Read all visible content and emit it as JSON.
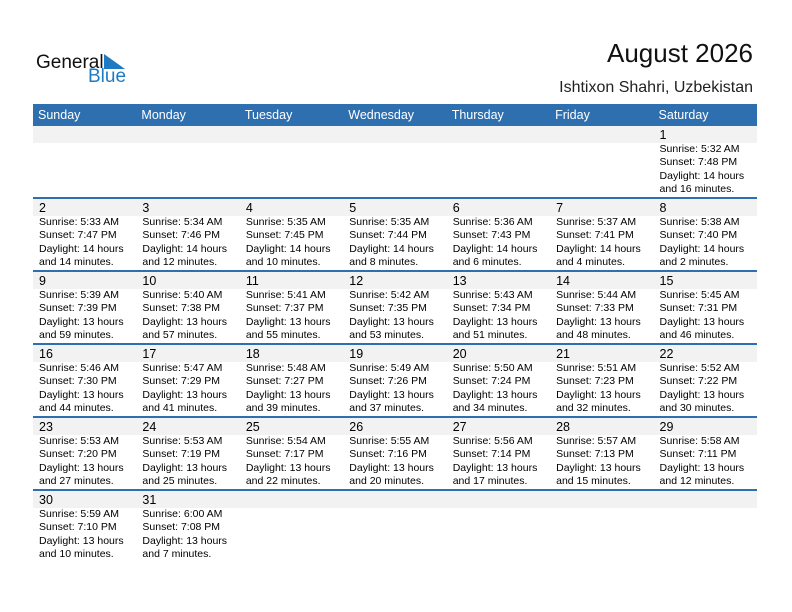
{
  "logo": {
    "text1": "General",
    "text2": "Blue",
    "color": "#1f7ac4"
  },
  "title": "August 2026",
  "location": "Ishtixon Shahri, Uzbekistan",
  "header_color": "#2e6fb0",
  "days": [
    "Sunday",
    "Monday",
    "Tuesday",
    "Wednesday",
    "Thursday",
    "Friday",
    "Saturday"
  ],
  "weeks": [
    [
      null,
      null,
      null,
      null,
      null,
      null,
      {
        "day": "1",
        "sunrise": "Sunrise: 5:32 AM",
        "sunset": "Sunset: 7:48 PM",
        "daylight": "Daylight: 14 hours",
        "minutes": "and 16 minutes."
      }
    ],
    [
      {
        "day": "2",
        "sunrise": "Sunrise: 5:33 AM",
        "sunset": "Sunset: 7:47 PM",
        "daylight": "Daylight: 14 hours",
        "minutes": "and 14 minutes."
      },
      {
        "day": "3",
        "sunrise": "Sunrise: 5:34 AM",
        "sunset": "Sunset: 7:46 PM",
        "daylight": "Daylight: 14 hours",
        "minutes": "and 12 minutes."
      },
      {
        "day": "4",
        "sunrise": "Sunrise: 5:35 AM",
        "sunset": "Sunset: 7:45 PM",
        "daylight": "Daylight: 14 hours",
        "minutes": "and 10 minutes."
      },
      {
        "day": "5",
        "sunrise": "Sunrise: 5:35 AM",
        "sunset": "Sunset: 7:44 PM",
        "daylight": "Daylight: 14 hours",
        "minutes": "and 8 minutes."
      },
      {
        "day": "6",
        "sunrise": "Sunrise: 5:36 AM",
        "sunset": "Sunset: 7:43 PM",
        "daylight": "Daylight: 14 hours",
        "minutes": "and 6 minutes."
      },
      {
        "day": "7",
        "sunrise": "Sunrise: 5:37 AM",
        "sunset": "Sunset: 7:41 PM",
        "daylight": "Daylight: 14 hours",
        "minutes": "and 4 minutes."
      },
      {
        "day": "8",
        "sunrise": "Sunrise: 5:38 AM",
        "sunset": "Sunset: 7:40 PM",
        "daylight": "Daylight: 14 hours",
        "minutes": "and 2 minutes."
      }
    ],
    [
      {
        "day": "9",
        "sunrise": "Sunrise: 5:39 AM",
        "sunset": "Sunset: 7:39 PM",
        "daylight": "Daylight: 13 hours",
        "minutes": "and 59 minutes."
      },
      {
        "day": "10",
        "sunrise": "Sunrise: 5:40 AM",
        "sunset": "Sunset: 7:38 PM",
        "daylight": "Daylight: 13 hours",
        "minutes": "and 57 minutes."
      },
      {
        "day": "11",
        "sunrise": "Sunrise: 5:41 AM",
        "sunset": "Sunset: 7:37 PM",
        "daylight": "Daylight: 13 hours",
        "minutes": "and 55 minutes."
      },
      {
        "day": "12",
        "sunrise": "Sunrise: 5:42 AM",
        "sunset": "Sunset: 7:35 PM",
        "daylight": "Daylight: 13 hours",
        "minutes": "and 53 minutes."
      },
      {
        "day": "13",
        "sunrise": "Sunrise: 5:43 AM",
        "sunset": "Sunset: 7:34 PM",
        "daylight": "Daylight: 13 hours",
        "minutes": "and 51 minutes."
      },
      {
        "day": "14",
        "sunrise": "Sunrise: 5:44 AM",
        "sunset": "Sunset: 7:33 PM",
        "daylight": "Daylight: 13 hours",
        "minutes": "and 48 minutes."
      },
      {
        "day": "15",
        "sunrise": "Sunrise: 5:45 AM",
        "sunset": "Sunset: 7:31 PM",
        "daylight": "Daylight: 13 hours",
        "minutes": "and 46 minutes."
      }
    ],
    [
      {
        "day": "16",
        "sunrise": "Sunrise: 5:46 AM",
        "sunset": "Sunset: 7:30 PM",
        "daylight": "Daylight: 13 hours",
        "minutes": "and 44 minutes."
      },
      {
        "day": "17",
        "sunrise": "Sunrise: 5:47 AM",
        "sunset": "Sunset: 7:29 PM",
        "daylight": "Daylight: 13 hours",
        "minutes": "and 41 minutes."
      },
      {
        "day": "18",
        "sunrise": "Sunrise: 5:48 AM",
        "sunset": "Sunset: 7:27 PM",
        "daylight": "Daylight: 13 hours",
        "minutes": "and 39 minutes."
      },
      {
        "day": "19",
        "sunrise": "Sunrise: 5:49 AM",
        "sunset": "Sunset: 7:26 PM",
        "daylight": "Daylight: 13 hours",
        "minutes": "and 37 minutes."
      },
      {
        "day": "20",
        "sunrise": "Sunrise: 5:50 AM",
        "sunset": "Sunset: 7:24 PM",
        "daylight": "Daylight: 13 hours",
        "minutes": "and 34 minutes."
      },
      {
        "day": "21",
        "sunrise": "Sunrise: 5:51 AM",
        "sunset": "Sunset: 7:23 PM",
        "daylight": "Daylight: 13 hours",
        "minutes": "and 32 minutes."
      },
      {
        "day": "22",
        "sunrise": "Sunrise: 5:52 AM",
        "sunset": "Sunset: 7:22 PM",
        "daylight": "Daylight: 13 hours",
        "minutes": "and 30 minutes."
      }
    ],
    [
      {
        "day": "23",
        "sunrise": "Sunrise: 5:53 AM",
        "sunset": "Sunset: 7:20 PM",
        "daylight": "Daylight: 13 hours",
        "minutes": "and 27 minutes."
      },
      {
        "day": "24",
        "sunrise": "Sunrise: 5:53 AM",
        "sunset": "Sunset: 7:19 PM",
        "daylight": "Daylight: 13 hours",
        "minutes": "and 25 minutes."
      },
      {
        "day": "25",
        "sunrise": "Sunrise: 5:54 AM",
        "sunset": "Sunset: 7:17 PM",
        "daylight": "Daylight: 13 hours",
        "minutes": "and 22 minutes."
      },
      {
        "day": "26",
        "sunrise": "Sunrise: 5:55 AM",
        "sunset": "Sunset: 7:16 PM",
        "daylight": "Daylight: 13 hours",
        "minutes": "and 20 minutes."
      },
      {
        "day": "27",
        "sunrise": "Sunrise: 5:56 AM",
        "sunset": "Sunset: 7:14 PM",
        "daylight": "Daylight: 13 hours",
        "minutes": "and 17 minutes."
      },
      {
        "day": "28",
        "sunrise": "Sunrise: 5:57 AM",
        "sunset": "Sunset: 7:13 PM",
        "daylight": "Daylight: 13 hours",
        "minutes": "and 15 minutes."
      },
      {
        "day": "29",
        "sunrise": "Sunrise: 5:58 AM",
        "sunset": "Sunset: 7:11 PM",
        "daylight": "Daylight: 13 hours",
        "minutes": "and 12 minutes."
      }
    ],
    [
      {
        "day": "30",
        "sunrise": "Sunrise: 5:59 AM",
        "sunset": "Sunset: 7:10 PM",
        "daylight": "Daylight: 13 hours",
        "minutes": "and 10 minutes."
      },
      {
        "day": "31",
        "sunrise": "Sunrise: 6:00 AM",
        "sunset": "Sunset: 7:08 PM",
        "daylight": "Daylight: 13 hours",
        "minutes": "and 7 minutes."
      },
      null,
      null,
      null,
      null,
      null
    ]
  ]
}
